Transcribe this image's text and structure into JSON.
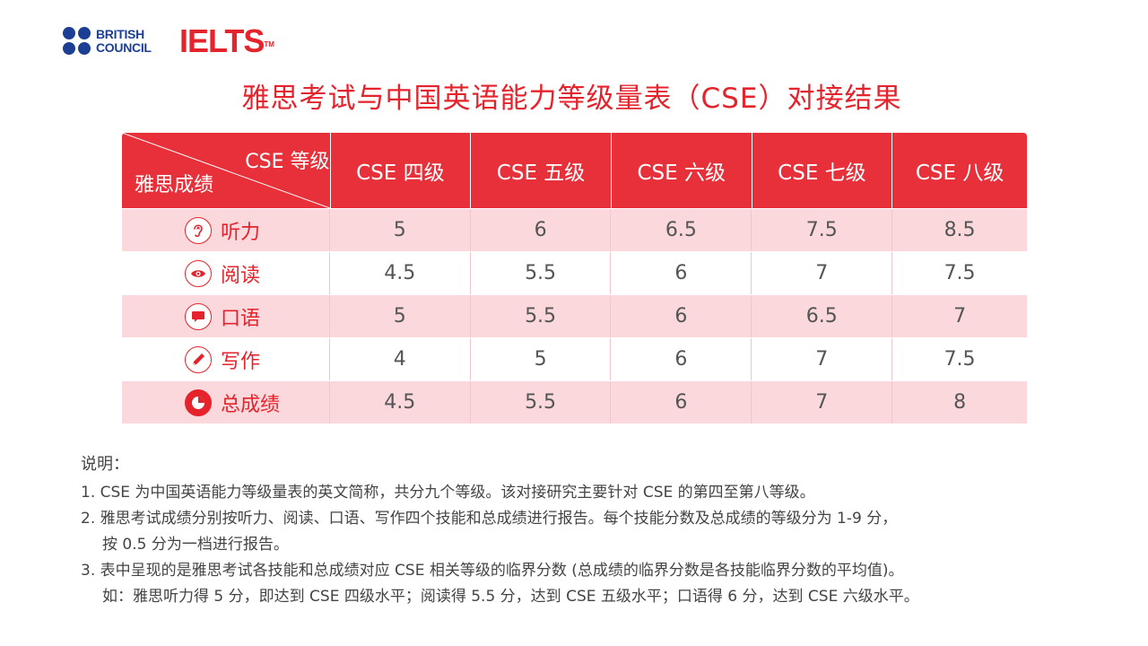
{
  "branding": {
    "british_council_line1": "BRITISH",
    "british_council_line2": "COUNCIL",
    "ielts": "IELTS",
    "ielts_tm": "TM"
  },
  "title": "雅思考试与中国英语能力等级量表（CSE）对接结果",
  "table": {
    "corner_top": "CSE 等级",
    "corner_bottom": "雅思成绩",
    "columns": [
      "CSE 四级",
      "CSE 五级",
      "CSE 六级",
      "CSE 七级",
      "CSE 八级"
    ],
    "rows": [
      {
        "label": "听力",
        "icon": "ear-icon",
        "values": [
          "5",
          "6",
          "6.5",
          "7.5",
          "8.5"
        ]
      },
      {
        "label": "阅读",
        "icon": "eye-icon",
        "values": [
          "4.5",
          "5.5",
          "6",
          "7",
          "7.5"
        ]
      },
      {
        "label": "口语",
        "icon": "speech-bubble-icon",
        "values": [
          "5",
          "5.5",
          "6",
          "6.5",
          "7"
        ]
      },
      {
        "label": "写作",
        "icon": "pen-icon",
        "values": [
          "4",
          "5",
          "6",
          "7",
          "7.5"
        ]
      },
      {
        "label": "总成绩",
        "icon": "pie-chart-icon",
        "values": [
          "4.5",
          "5.5",
          "6",
          "7",
          "8"
        ]
      }
    ]
  },
  "notes": {
    "heading": "说明：",
    "item1": "1. CSE 为中国英语能力等级量表的英文简称，共分九个等级。该对接研究主要针对 CSE 的第四至第八等级。",
    "item2_line1": "2. 雅思考试成绩分别按听力、阅读、口语、写作四个技能和总成绩进行报告。每个技能分数及总成绩的等级分为 1-9 分，",
    "item2_line2": "按 0.5 分为一档进行报告。",
    "item3_line1": "3. 表中呈现的是雅思考试各技能和总成绩对应 CSE 相关等级的临界分数 (总成绩的临界分数是各技能临界分数的平均值)。",
    "item3_line2": "如：雅思听力得 5 分，即达到 CSE 四级水平；阅读得 5.5 分，达到 CSE 五级水平；口语得 6 分，达到 CSE 六级水平。"
  },
  "colors": {
    "brand_red": "#e5232c",
    "header_red": "#e8303a",
    "row_pink": "#fad8dc",
    "british_council_blue": "#1c3f94"
  }
}
